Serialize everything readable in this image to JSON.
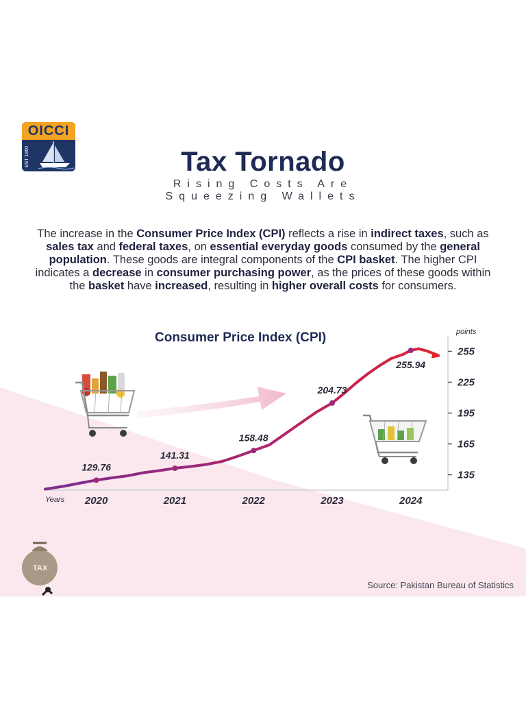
{
  "header": {
    "logo_text": "OICCI",
    "logo_est": "EST 1860",
    "title": "Tax Tornado",
    "subtitle_line1": "Rising Costs Are",
    "subtitle_line2": "Squeezing Wallets"
  },
  "paragraph": {
    "t1": "The increase in the ",
    "b1": "Consumer Price Index (CPI)",
    "t2": " reflects a rise in ",
    "b2": "indirect taxes",
    "t3": ", such as ",
    "b3": "sales tax",
    "t4": " and ",
    "b4": "federal taxes",
    "t5": ", on ",
    "b5": "essential everyday goods",
    "t6": " consumed by the ",
    "b6": "general population",
    "t7": ". These goods are integral components of the ",
    "b7": "CPI basket",
    "t8": ". The higher CPI indicates a ",
    "b8": "decrease",
    "t9": " in ",
    "b9": "consumer purchasing power",
    "t10": ", as the prices of these goods within the ",
    "b10": "basket",
    "t11": " have ",
    "b11": "increased",
    "t12": ", resulting in ",
    "b12": "higher overall costs",
    "t13": " for consumers."
  },
  "colors": {
    "title": "#1f2a55",
    "line_start": "#7b2d8f",
    "line_end": "#e0252b",
    "background_wedge": "#fbe7ee"
  },
  "icons": [
    "shopping-cart-full-icon",
    "shopping-cart-icon",
    "tax-money-bag-icon",
    "arrow-right-icon"
  ],
  "chart_data": {
    "type": "line",
    "title": "Consumer Price Index (CPI)",
    "xlabel": "Years",
    "ylabel": "points",
    "x_ticks": [
      "2020",
      "2021",
      "2022",
      "2023",
      "2024"
    ],
    "y_ticks": [
      135,
      165,
      195,
      225,
      255
    ],
    "ylim": [
      120,
      260
    ],
    "xlim": [
      2019.35,
      2024.35
    ],
    "series": [
      {
        "x": [
          2019.35,
          2019.6,
          2019.8,
          2020.0,
          2020.2,
          2020.4,
          2020.6,
          2020.8,
          2021.0,
          2021.2,
          2021.4,
          2021.6,
          2021.8,
          2022.0,
          2022.2,
          2022.35,
          2022.5,
          2022.65,
          2022.8,
          2023.0,
          2023.15,
          2023.3,
          2023.45,
          2023.6,
          2023.75,
          2023.9,
          2024.0,
          2024.1,
          2024.2,
          2024.35
        ],
        "values": [
          121,
          124,
          127,
          129.76,
          132,
          134,
          137,
          139,
          141.31,
          143,
          145,
          148,
          153,
          158.48,
          164,
          172,
          180,
          188,
          196,
          204.73,
          214,
          224,
          233,
          241,
          248,
          252,
          255.94,
          257.5,
          255.5,
          251
        ]
      }
    ],
    "data_labels": [
      {
        "x": 2020,
        "text": "129.76"
      },
      {
        "x": 2021,
        "text": "141.31"
      },
      {
        "x": 2022,
        "text": "158.48"
      },
      {
        "x": 2023,
        "text": "204.73"
      },
      {
        "x": 2024,
        "text": "255.94"
      }
    ],
    "grid": false,
    "legend": "none"
  },
  "source": "Source: Pakistan Bureau of Statistics"
}
